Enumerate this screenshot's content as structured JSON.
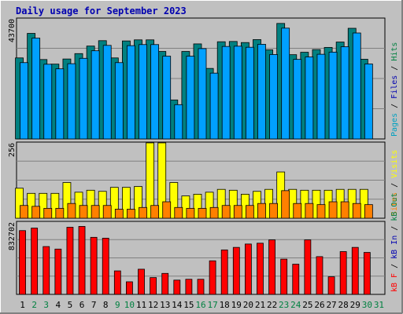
{
  "chart_data": {
    "type": "bar",
    "title": "Daily usage for September 2023",
    "days": [
      "1",
      "2",
      "3",
      "4",
      "5",
      "6",
      "7",
      "8",
      "9",
      "10",
      "11",
      "12",
      "13",
      "14",
      "15",
      "16",
      "17",
      "18",
      "19",
      "20",
      "21",
      "22",
      "23",
      "24",
      "25",
      "26",
      "27",
      "28",
      "29",
      "30",
      "31"
    ],
    "weekend_days": [
      "2",
      "3",
      "9",
      "10",
      "16",
      "17",
      "23",
      "24",
      "30",
      "31"
    ],
    "day_label_colors": {
      "weekday": "#000000",
      "weekend": "#008040"
    },
    "panels": [
      {
        "id": "hits-files-pages",
        "ymax_label": "43700",
        "ymax": 43700,
        "side_labels": [
          {
            "text": "Pages",
            "color": "#00a0c0"
          },
          {
            "text": " / ",
            "color": "#000000"
          },
          {
            "text": "Files",
            "color": "#0000b0"
          },
          {
            "text": " / ",
            "color": "#000000"
          },
          {
            "text": "Hits",
            "color": "#008040"
          }
        ],
        "series": [
          {
            "name": "Hits",
            "color": "#008080",
            "values": [
              29200,
              38300,
              28600,
              26900,
              28800,
              30800,
              33600,
              35600,
              29200,
              35500,
              35900,
              35900,
              31600,
              13600,
              31600,
              34400,
              25300,
              35200,
              35300,
              34900,
              36000,
              32200,
              42000,
              30400,
              31300,
              32300,
              33100,
              35100,
              40200,
              28700
            ]
          },
          {
            "name": "Files",
            "color": "#00a0ff",
            "values": [
              29200,
              38300,
              28600,
              26900,
              28800,
              30800,
              33600,
              35600,
              29200,
              35500,
              35900,
              35900,
              31600,
              13600,
              31600,
              34400,
              25300,
              35200,
              35300,
              34900,
              36000,
              32200,
              42000,
              30400,
              31300,
              32300,
              33100,
              35100,
              40200,
              28700
            ]
          }
        ]
      },
      {
        "id": "visits-sites",
        "ymax_label": "256",
        "ymax": 256,
        "side_labels": [
          {
            "text": "Sites",
            "color": "#ff8000"
          },
          {
            "text": " / ",
            "color": "#000000"
          },
          {
            "text": "Visits",
            "color": "#ffff00"
          }
        ],
        "series": [
          {
            "name": "Visits",
            "color": "#ffff00",
            "values": [
              97,
              79,
              79,
              79,
              117,
              83,
              90,
              86,
              100,
              100,
              103,
              256,
              256,
              117,
              70,
              76,
              83,
              93,
              90,
              76,
              86,
              93,
              154,
              93,
              90,
              90,
              90,
              93,
              93,
              93
            ]
          },
          {
            "name": "Sites",
            "color": "#ff8000",
            "values": [
              53,
              50,
              43,
              43,
              60,
              53,
              53,
              53,
              40,
              40,
              46,
              53,
              66,
              46,
              43,
              43,
              46,
              53,
              53,
              53,
              60,
              60,
              105,
              60,
              60,
              56,
              66,
              66,
              60,
              56
            ]
          }
        ]
      },
      {
        "id": "kb",
        "ymax_label": "832702",
        "ymax": 832702,
        "side_labels": [
          {
            "text": "kB F",
            "color": "#ff0000"
          },
          {
            "text": " / ",
            "color": "#000000"
          },
          {
            "text": "kB In",
            "color": "#0000b0"
          },
          {
            "text": " / ",
            "color": "#000000"
          },
          {
            "text": "kB Out",
            "color": "#008040"
          }
        ],
        "series": [
          {
            "name": "kB F",
            "color": "#ff0000",
            "values": [
              760000,
              790000,
              570000,
              540000,
              800000,
              810000,
              680000,
              670000,
              280000,
              150000,
              300000,
              200000,
              250000,
              170000,
              180000,
              180000,
              400000,
              530000,
              560000,
              600000,
              610000,
              650000,
              420000,
              360000,
              650000,
              450000,
              210000,
              510000,
              560000,
              500000
            ]
          }
        ]
      }
    ]
  }
}
